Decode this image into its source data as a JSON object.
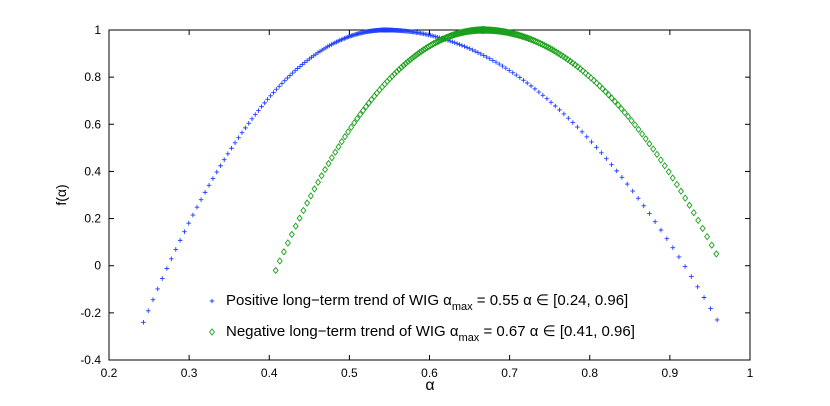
{
  "chart_data": {
    "type": "scatter",
    "title": "",
    "xlabel": "α",
    "ylabel": "f(α)",
    "xlim": [
      0.2,
      1.0
    ],
    "ylim": [
      -0.4,
      1.0
    ],
    "grid": false,
    "legend_position": "bottom-center",
    "xticks": [
      0.2,
      0.3,
      0.4,
      0.5,
      0.6,
      0.7,
      0.8,
      0.9,
      1
    ],
    "yticks": [
      -0.4,
      -0.2,
      0,
      0.2,
      0.4,
      0.6,
      0.8,
      1
    ],
    "series": [
      {
        "name": "Positive long−term trend of WIG",
        "legend_prefix": "Positive long−term trend of WIG α",
        "legend_sub": "max",
        "legend_suffix": " = 0.55 α ∈ [0.24, 0.96]",
        "marker": "plus",
        "color": "#1f3fff",
        "alpha_min": 0.243,
        "alpha_max": 0.959,
        "alpha_peak": 0.545,
        "f_left_end": -0.24,
        "f_right_end": -0.23,
        "f_peak": 1.0
      },
      {
        "name": "Negative long−term trend of WIG",
        "legend_prefix": "Negative long−term trend of WIG α",
        "legend_sub": "max",
        "legend_suffix": " = 0.67 α ∈ [0.41, 0.96]",
        "marker": "diamond",
        "color": "#1aa01a",
        "alpha_min": 0.408,
        "alpha_max": 0.958,
        "alpha_peak": 0.667,
        "f_left_end": -0.02,
        "f_right_end": 0.05,
        "f_peak": 1.0
      }
    ]
  }
}
